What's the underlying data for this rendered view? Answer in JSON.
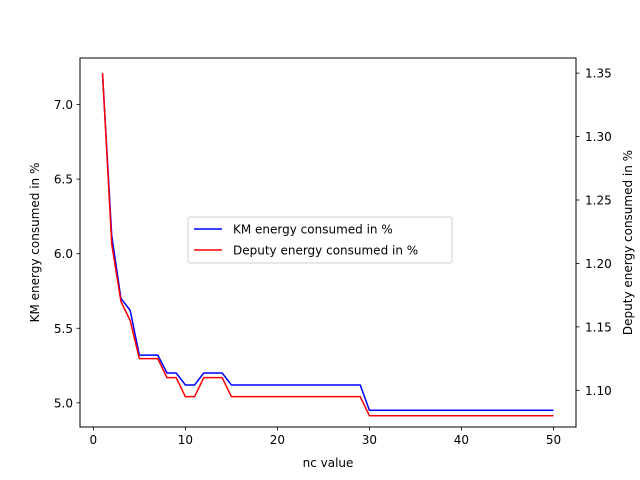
{
  "chart_data": {
    "type": "line",
    "title": "",
    "xlabel": "nc value",
    "ylabel_left": "KM energy consumed in %",
    "ylabel_right": "Deputy energy consumed in %",
    "xlim": [
      -1.45,
      52.45
    ],
    "ylim_left": [
      4.838,
      7.312
    ],
    "ylim_right": [
      1.0711,
      1.3619
    ],
    "x_ticks": [
      0,
      10,
      20,
      30,
      40,
      50
    ],
    "y_left_ticks": [
      5.0,
      5.5,
      6.0,
      6.5,
      7.0
    ],
    "y_right_ticks": [
      1.1,
      1.15,
      1.2,
      1.25,
      1.3,
      1.35
    ],
    "grid": false,
    "legend_position": "center-left",
    "series": [
      {
        "name": "KM energy consumed in %",
        "axis": "left",
        "color": "#0000ff",
        "points": [
          [
            1,
            7.2
          ],
          [
            2,
            6.12
          ],
          [
            3,
            5.7
          ],
          [
            4,
            5.62
          ],
          [
            5,
            5.32
          ],
          [
            6,
            5.32
          ],
          [
            7,
            5.32
          ],
          [
            8,
            5.2
          ],
          [
            9,
            5.2
          ],
          [
            10,
            5.12
          ],
          [
            11,
            5.12
          ],
          [
            12,
            5.2
          ],
          [
            13,
            5.2
          ],
          [
            14,
            5.2
          ],
          [
            15,
            5.12
          ],
          [
            29,
            5.12
          ],
          [
            30,
            4.95
          ],
          [
            50,
            4.95
          ]
        ]
      },
      {
        "name": "Deputy energy consumed in %",
        "axis": "right",
        "color": "#ff0000",
        "points": [
          [
            1,
            1.35
          ],
          [
            2,
            1.215
          ],
          [
            3,
            1.17
          ],
          [
            4,
            1.155
          ],
          [
            5,
            1.125
          ],
          [
            6,
            1.125
          ],
          [
            7,
            1.125
          ],
          [
            8,
            1.11
          ],
          [
            9,
            1.11
          ],
          [
            10,
            1.095
          ],
          [
            11,
            1.095
          ],
          [
            12,
            1.11
          ],
          [
            13,
            1.11
          ],
          [
            14,
            1.11
          ],
          [
            15,
            1.095
          ],
          [
            29,
            1.095
          ],
          [
            30,
            1.08
          ],
          [
            50,
            1.08
          ]
        ]
      }
    ]
  }
}
